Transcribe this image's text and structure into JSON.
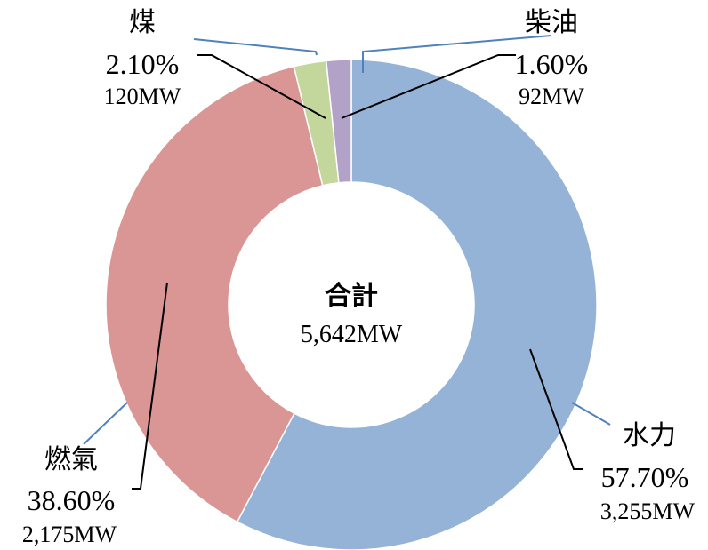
{
  "chart_data": {
    "type": "pie",
    "donut": true,
    "title": "",
    "center_label": "合計",
    "center_value": "5,642MW",
    "slices": [
      {
        "name": "水力",
        "percent_label": "57.70%",
        "mw_label": "3,255MW",
        "value": 3255,
        "color": "#95b3d7"
      },
      {
        "name": "燃氣",
        "percent_label": "38.60%",
        "mw_label": "2,175MW",
        "value": 2175,
        "color": "#d99694"
      },
      {
        "name": "煤",
        "percent_label": "2.10%",
        "mw_label": "120MW",
        "value": 120,
        "color": "#c3d69b"
      },
      {
        "name": "柴油",
        "percent_label": "1.60%",
        "mw_label": "92MW",
        "value": 92,
        "color": "#b3a2c7"
      }
    ],
    "legend": "none"
  }
}
